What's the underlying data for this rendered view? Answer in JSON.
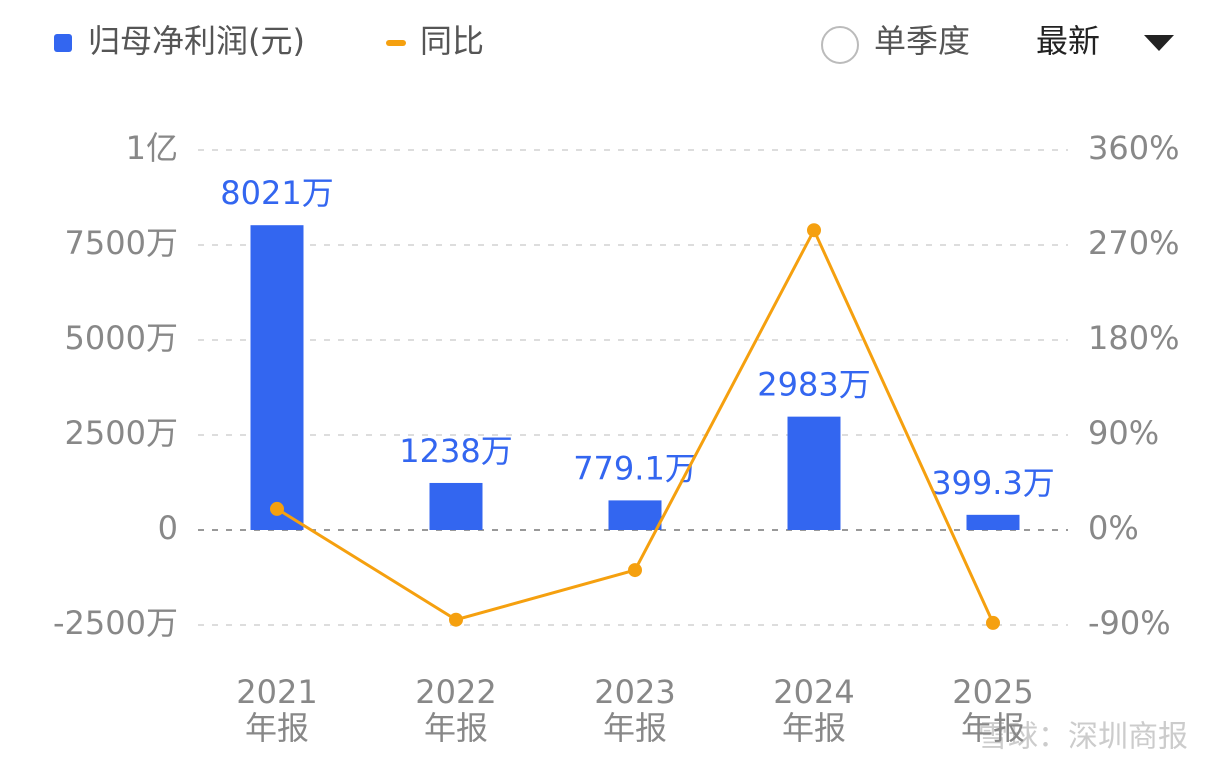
{
  "chart_data": {
    "type": "bar_line",
    "legend": [
      "归母净利润(元)",
      "同比"
    ],
    "controls": {
      "radio": "单季度",
      "dropdown": "最新"
    },
    "watermark": "雪球：深圳商报",
    "categories": [
      [
        "2021",
        "年报"
      ],
      [
        "2022",
        "年报"
      ],
      [
        "2023",
        "年报"
      ],
      [
        "2024",
        "年报"
      ],
      [
        "2025",
        "年报"
      ]
    ],
    "series": [
      {
        "name": "归母净利润(元)",
        "color": "#3366f0",
        "type": "bar",
        "values": [
          8021,
          1238,
          779.1,
          2983,
          399.3
        ],
        "value_labels": [
          "8021万",
          "1238万",
          "779.1万",
          "2983万",
          "399.3万"
        ]
      },
      {
        "name": "同比",
        "color": "#f5a00f",
        "type": "line",
        "axis": "y2",
        "values": [
          20,
          -85,
          -38,
          284,
          -88
        ]
      }
    ],
    "ylim": [
      -2500,
      10000
    ],
    "yticks": [
      {
        "value": -2500,
        "label": "-2500万"
      },
      0,
      {
        "value": 2500,
        "label": "2500万"
      },
      {
        "value": 5000,
        "label": "5000万"
      },
      {
        "value": 7500,
        "label": "7500万"
      },
      {
        "value": 10000,
        "label": "1亿"
      }
    ],
    "y2lim": [
      -90,
      360
    ],
    "y2ticks": [
      {
        "value": -90,
        "label": "-90%"
      },
      {
        "value": 0,
        "label": "0%"
      },
      {
        "value": 90,
        "label": "90%"
      },
      {
        "value": 180,
        "label": "180%"
      },
      {
        "value": 270,
        "label": "270%"
      },
      {
        "value": 360,
        "label": "360%"
      }
    ],
    "grid": true
  }
}
